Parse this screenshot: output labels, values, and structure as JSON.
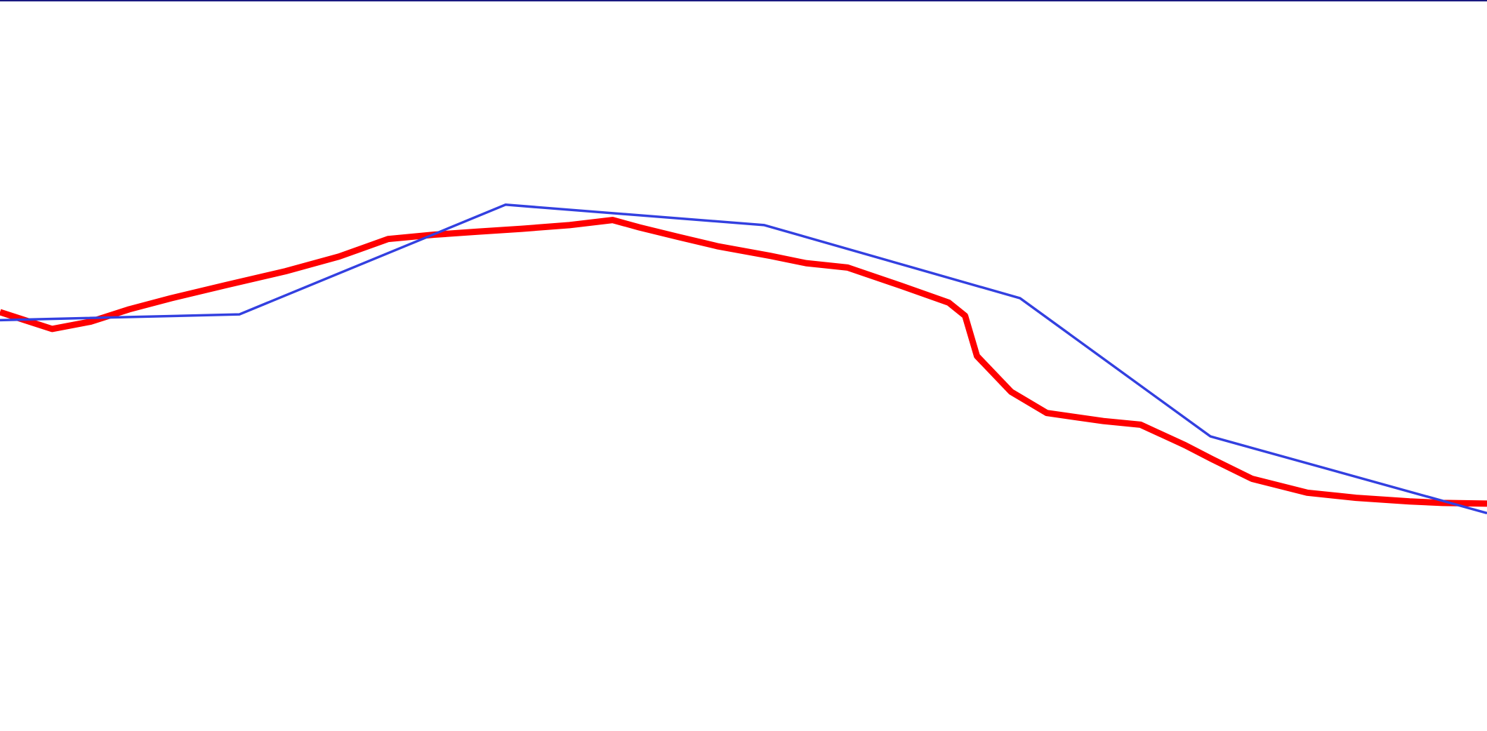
{
  "chart_data": {
    "type": "line",
    "title": "",
    "xlabel": "",
    "ylabel": "",
    "xlim": [
      0,
      100
    ],
    "ylim": [
      0,
      100
    ],
    "grid": false,
    "legend": "none",
    "border_color": "#1a1a80",
    "series": [
      {
        "color": "#ff0000",
        "line": "thick",
        "x": [
          0,
          3.5,
          6.1,
          8.7,
          11.5,
          15.2,
          19.2,
          22.8,
          26.1,
          29.2,
          32.1,
          35.1,
          38.3,
          41.2,
          43.0,
          45.6,
          48.3,
          51.8,
          54.2,
          57.0,
          60.6,
          63.8,
          64.9,
          65.7,
          68.0,
          70.4,
          74.2,
          76.7,
          79.7,
          81.5,
          84.2,
          87.9,
          91.2,
          94.8,
          97.0,
          100.0
        ],
        "y": [
          57.3,
          55.0,
          56.0,
          57.7,
          59.2,
          61.0,
          62.9,
          64.9,
          67.3,
          67.9,
          68.3,
          68.7,
          69.2,
          69.9,
          68.9,
          67.6,
          66.3,
          65.0,
          64.0,
          63.4,
          60.9,
          58.6,
          56.8,
          51.3,
          46.4,
          43.5,
          42.4,
          41.9,
          39.1,
          37.2,
          34.5,
          32.6,
          31.9,
          31.4,
          31.2,
          31.1
        ]
      },
      {
        "color": "#3340e0",
        "line": "thin",
        "x": [
          0,
          16.1,
          34.0,
          51.4,
          68.6,
          81.4,
          100.0
        ],
        "y": [
          56.2,
          57.0,
          72.0,
          69.2,
          59.2,
          40.3,
          29.8
        ]
      }
    ]
  }
}
